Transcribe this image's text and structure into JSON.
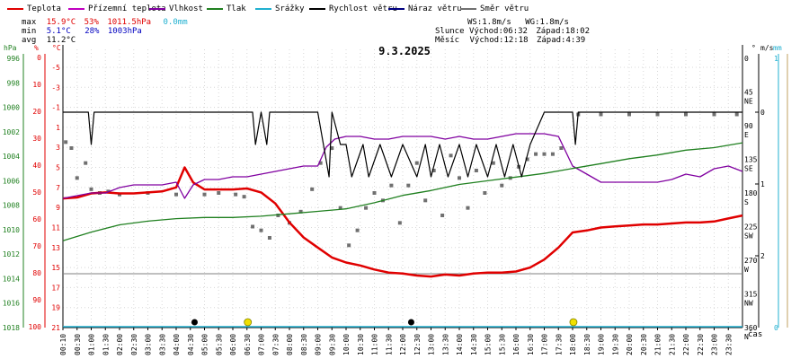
{
  "legend": [
    {
      "label": "Teplota",
      "color": "#e00000"
    },
    {
      "label": "Přízemní teplota",
      "color": "#c000c0"
    },
    {
      "label": "Vlhkost",
      "color": "#8000a0"
    },
    {
      "label": "Tlak",
      "color": "#208020"
    },
    {
      "label": "Srážky",
      "color": "#20b0d0"
    },
    {
      "label": "Rychlost větru",
      "color": "#000000"
    },
    {
      "label": "Náraz větru",
      "color": "#000080"
    },
    {
      "label": "Směr větru",
      "color": "#707070"
    }
  ],
  "stats": {
    "max_label": "max",
    "max_temp": "15.9°C",
    "max_hum": "53%",
    "max_press": "1011.5hPa",
    "max_rain": "0.0mm",
    "min_label": "min",
    "min_temp": "5.1°C",
    "min_hum": "28%",
    "min_press": "1003hPa",
    "avg_label": "avg",
    "avg_temp": "11.2°C"
  },
  "astro": {
    "ws": "WS:1.8m/s",
    "wg": "WG:1.8m/s",
    "sun_label": "Slunce",
    "sunrise": "Východ:06:32",
    "sunset": "Západ:18:02",
    "moon_label": "Měsíc",
    "moonrise": "Východ:12:18",
    "moonset": "Západ:4:39"
  },
  "chart_data": {
    "type": "line",
    "title": "9.3.2025",
    "xlabel": "čas",
    "x_ticks": [
      "00:10",
      "00:30",
      "01:00",
      "01:30",
      "02:00",
      "02:30",
      "03:00",
      "03:30",
      "04:00",
      "04:30",
      "05:00",
      "05:30",
      "06:00",
      "06:30",
      "07:00",
      "07:30",
      "08:00",
      "08:30",
      "09:00",
      "09:30",
      "10:00",
      "10:30",
      "11:00",
      "11:30",
      "12:00",
      "12:30",
      "13:00",
      "13:30",
      "14:00",
      "14:30",
      "15:00",
      "15:30",
      "16:00",
      "16:30",
      "17:00",
      "17:30",
      "18:00",
      "18:30",
      "19:00",
      "19:30",
      "20:00",
      "20:30",
      "21:00",
      "21:30",
      "22:00",
      "22:30",
      "23:00",
      "23:30"
    ],
    "axes": {
      "pressure": {
        "unit": "hPa",
        "ticks": [
          "1018",
          "1016",
          "1014",
          "1012",
          "1010",
          "1008",
          "1006",
          "1004",
          "1002",
          "1000",
          "998",
          "996"
        ],
        "range": [
          996,
          1018
        ],
        "color": "#208020"
      },
      "humidity": {
        "unit": "%",
        "ticks": [
          "100",
          "90",
          "80",
          "70",
          "60",
          "50",
          "40",
          "30",
          "20",
          "10",
          "0"
        ],
        "range": [
          0,
          100
        ],
        "color": "#e00000"
      },
      "temperature": {
        "unit": "°C",
        "ticks": [
          "21",
          "19",
          "17",
          "15",
          "13",
          "11",
          "9",
          "7",
          "5",
          "3",
          "1",
          "-1",
          "-3",
          "-5"
        ],
        "range": [
          -5,
          22
        ],
        "color": "#e00000"
      },
      "wind_dir": {
        "unit": "°",
        "ticks": [
          "360",
          "315",
          "270",
          "225",
          "180",
          "135",
          "90",
          "45",
          "0"
        ],
        "cardinals": [
          "N",
          "NW",
          "W",
          "SW",
          "S",
          "SE",
          "E",
          "NE",
          ""
        ],
        "range": [
          0,
          360
        ]
      },
      "wind_speed": {
        "unit": "m/s",
        "ticks": [
          "2",
          "1",
          "0"
        ],
        "range": [
          0,
          3
        ]
      },
      "rain": {
        "unit": "mm",
        "ticks": [
          "1",
          "0"
        ]
      }
    },
    "series": [
      {
        "name": "Teplota",
        "axis": "temperature",
        "color": "#e00000",
        "x": [
          0,
          0.5,
          1,
          1.5,
          2,
          2.5,
          3,
          3.5,
          4,
          4.3,
          4.6,
          5,
          5.5,
          6,
          6.5,
          7,
          7.5,
          8,
          8.5,
          9,
          9.5,
          10,
          10.5,
          11,
          11.5,
          12,
          12.5,
          13,
          13.5,
          14,
          14.5,
          15,
          15.5,
          16,
          16.5,
          17,
          17.5,
          18,
          18.5,
          19,
          19.5,
          20,
          20.5,
          21,
          21.5,
          22,
          22.5,
          23,
          23.5,
          24
        ],
        "values": [
          8.1,
          8.0,
          7.6,
          7.5,
          7.6,
          7.6,
          7.5,
          7.4,
          7.0,
          5.0,
          6.5,
          7.2,
          7.2,
          7.2,
          7.1,
          7.5,
          8.6,
          10.5,
          12.0,
          13.0,
          14.0,
          14.5,
          14.8,
          15.2,
          15.5,
          15.6,
          15.8,
          15.9,
          15.7,
          15.8,
          15.6,
          15.5,
          15.5,
          15.4,
          15.0,
          14.2,
          13.0,
          11.5,
          11.3,
          11.0,
          10.9,
          10.8,
          10.7,
          10.7,
          10.6,
          10.5,
          10.5,
          10.4,
          10.1,
          9.8
        ]
      },
      {
        "name": "Vlhkost",
        "axis": "humidity",
        "color": "#8000a0",
        "x": [
          0,
          0.5,
          1,
          1.5,
          2,
          2.5,
          3,
          3.5,
          4,
          4.3,
          4.6,
          5,
          5.5,
          6,
          6.5,
          7,
          7.5,
          8,
          8.5,
          9,
          9.3,
          9.6,
          10,
          10.5,
          11,
          11.5,
          12,
          12.5,
          13,
          13.5,
          14,
          14.5,
          15,
          15.5,
          16,
          16.5,
          17,
          17.5,
          18,
          18.5,
          19,
          19.5,
          20,
          20.5,
          21,
          21.5,
          22,
          22.5,
          23,
          23.5,
          24
        ],
        "values": [
          52,
          51,
          50,
          50,
          48,
          47,
          47,
          47,
          46,
          52,
          47,
          45,
          45,
          44,
          44,
          43,
          42,
          41,
          40,
          40,
          33,
          30,
          29,
          29,
          30,
          30,
          29,
          29,
          29,
          30,
          29,
          30,
          30,
          29,
          28,
          28,
          28,
          29,
          40,
          43,
          46,
          46,
          46,
          46,
          46,
          45,
          43,
          44,
          41,
          40,
          42
        ]
      },
      {
        "name": "Tlak",
        "axis": "pressure",
        "color": "#208020",
        "x": [
          0,
          1,
          2,
          3,
          4,
          5,
          6,
          7,
          8,
          9,
          10,
          11,
          12,
          13,
          14,
          15,
          16,
          17,
          18,
          19,
          20,
          21,
          22,
          23,
          24
        ],
        "values": [
          1010.9,
          1010.2,
          1009.6,
          1009.3,
          1009.1,
          1009.0,
          1009.0,
          1008.9,
          1008.7,
          1008.5,
          1008.3,
          1007.8,
          1007.2,
          1006.8,
          1006.3,
          1006.0,
          1005.7,
          1005.4,
          1005.0,
          1004.6,
          1004.2,
          1003.9,
          1003.5,
          1003.3,
          1002.9
        ]
      },
      {
        "name": "Rychlost větru",
        "axis": "wind_speed",
        "color": "#000000",
        "x": [
          0,
          0.9,
          1.0,
          1.1,
          1.3,
          6.7,
          6.8,
          7.0,
          7.2,
          7.3,
          9.0,
          9.2,
          9.4,
          9.5,
          9.8,
          10.0,
          10.2,
          10.6,
          10.8,
          11.2,
          11.6,
          12.0,
          12.5,
          12.8,
          13.0,
          13.3,
          13.6,
          14.0,
          14.3,
          14.6,
          15.0,
          15.3,
          15.6,
          15.9,
          16.2,
          16.5,
          17.0,
          17.2,
          17.4,
          17.8,
          18.0,
          18.1,
          18.2,
          18.4,
          24
        ],
        "values": [
          0,
          0,
          0.45,
          0,
          0,
          0,
          0.45,
          0,
          0.45,
          0,
          0,
          0.45,
          0.9,
          0,
          0.45,
          0.45,
          0.9,
          0.45,
          0.9,
          0.45,
          0.9,
          0.45,
          0.9,
          0.45,
          0.9,
          0.45,
          0.9,
          0.45,
          0.9,
          0.45,
          0.9,
          0.45,
          0.9,
          0.45,
          0.9,
          0.45,
          0,
          0,
          0,
          0,
          0,
          0.45,
          0,
          0,
          0
        ]
      }
    ],
    "wind_direction": {
      "name": "Směr větru",
      "axis": "wind_dir",
      "x": [
        0.1,
        0.3,
        0.5,
        0.8,
        1.0,
        1.3,
        1.6,
        2,
        3,
        4,
        5,
        5.5,
        6.1,
        6.4,
        6.7,
        7.0,
        7.3,
        7.6,
        8.0,
        8.4,
        8.8,
        9.1,
        9.5,
        9.8,
        10.1,
        10.4,
        10.7,
        11.0,
        11.3,
        11.6,
        11.9,
        12.2,
        12.5,
        12.8,
        13.1,
        13.4,
        13.7,
        14.0,
        14.3,
        14.6,
        14.9,
        15.2,
        15.5,
        15.8,
        16.1,
        16.4,
        16.7,
        17.0,
        17.3,
        17.6,
        18.2,
        19,
        20,
        21,
        22,
        23,
        23.8
      ],
      "values": [
        112,
        120,
        160,
        140,
        175,
        180,
        178,
        182,
        180,
        182,
        182,
        180,
        182,
        185,
        225,
        230,
        240,
        210,
        220,
        205,
        175,
        140,
        120,
        200,
        250,
        230,
        200,
        180,
        190,
        170,
        220,
        170,
        140,
        190,
        150,
        210,
        130,
        160,
        200,
        150,
        180,
        140,
        170,
        160,
        145,
        135,
        128,
        128,
        128,
        120,
        75,
        75,
        75,
        75,
        75,
        75,
        75
      ]
    },
    "sun_events": [
      {
        "label": "sunrise",
        "x": 6.53
      },
      {
        "label": "sunset",
        "x": 18.03
      }
    ],
    "moon_events": [
      {
        "label": "moonset",
        "x": 4.65
      },
      {
        "label": "moonrise",
        "x": 12.3
      }
    ]
  }
}
